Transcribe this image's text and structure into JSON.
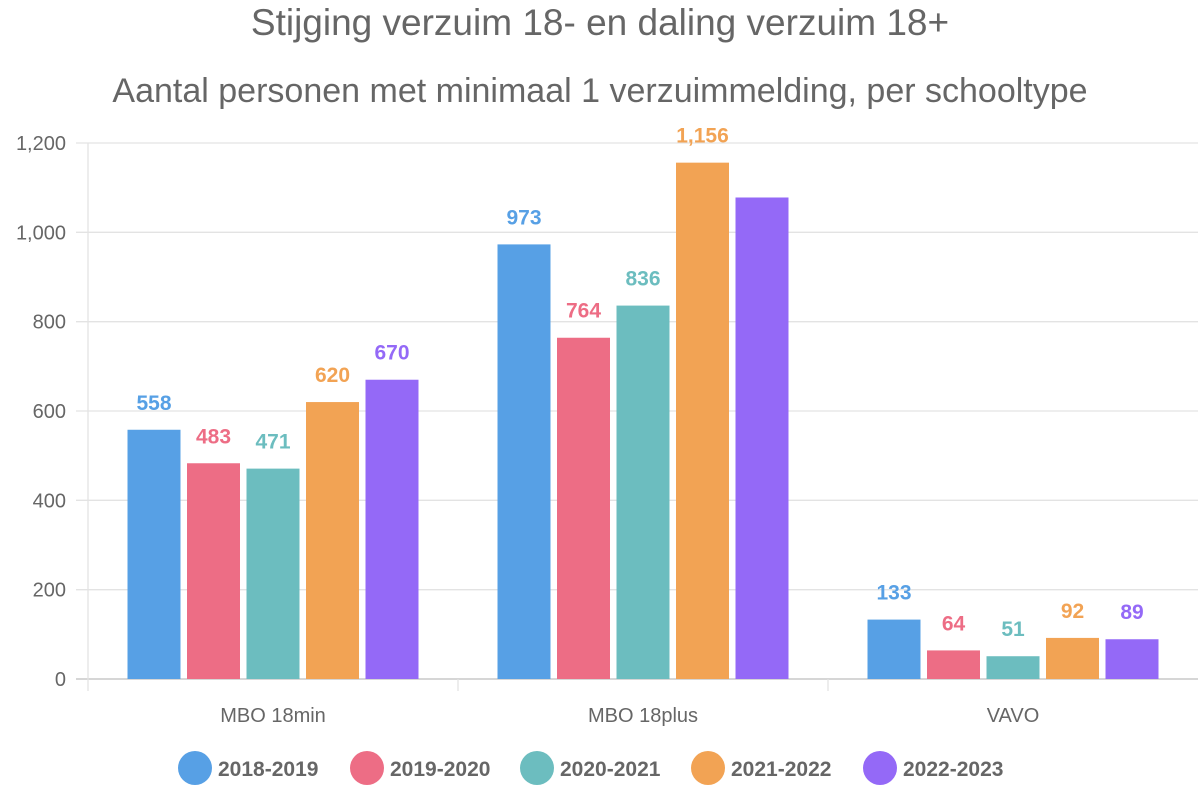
{
  "chart_data": {
    "type": "bar",
    "title": "Stijging verzuim 18- en daling verzuim 18+",
    "subtitle": "Aantal personen met minimaal 1 verzuimmelding, per schooltype",
    "categories": [
      "MBO 18min",
      "MBO 18plus",
      "VAVO"
    ],
    "series": [
      {
        "name": "2018-2019",
        "color": "#57a0e5",
        "values": [
          558,
          973,
          133
        ],
        "labels": [
          "558",
          "973",
          "133"
        ]
      },
      {
        "name": "2019-2020",
        "color": "#ed6d85",
        "values": [
          483,
          764,
          64
        ],
        "labels": [
          "483",
          "764",
          "64"
        ]
      },
      {
        "name": "2020-2021",
        "color": "#6cbdbf",
        "values": [
          471,
          836,
          51
        ],
        "labels": [
          "471",
          "836",
          "51"
        ]
      },
      {
        "name": "2021-2022",
        "color": "#f2a354",
        "values": [
          620,
          1156,
          92
        ],
        "labels": [
          "620",
          "1,156",
          "92"
        ]
      },
      {
        "name": "2022-2023",
        "color": "#9469f7",
        "values": [
          670,
          1078,
          89
        ],
        "labels": [
          "670",
          "",
          "89"
        ]
      }
    ],
    "yticks": [
      0,
      200,
      400,
      600,
      800,
      1000,
      1200
    ],
    "ytick_labels": [
      "0",
      "200",
      "400",
      "600",
      "800",
      "1,000",
      "1,200"
    ],
    "ylim": [
      0,
      1200
    ],
    "grid": true,
    "legend_position": "bottom"
  }
}
